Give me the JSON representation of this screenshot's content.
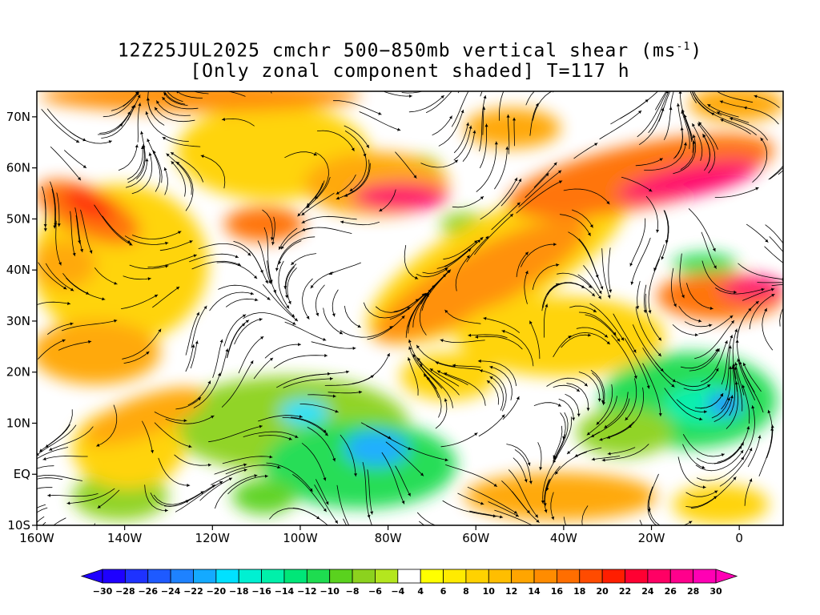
{
  "title": {
    "line1_prefix": "12Z25JUL2025 cmchr 500−850mb vertical shear (ms",
    "line1_sup": "-1",
    "line1_suffix": ")",
    "line2": "[Only zonal component shaded] T=117 h"
  },
  "map": {
    "lat_labels": [
      "70N",
      "60N",
      "50N",
      "40N",
      "30N",
      "20N",
      "10N",
      "EQ",
      "10S"
    ],
    "lon_labels": [
      "160W",
      "140W",
      "120W",
      "100W",
      "80W",
      "60W",
      "40W",
      "20W",
      "0"
    ],
    "lat_range": [
      -10,
      75
    ],
    "lon_range": [
      -160,
      10
    ]
  },
  "colorbar": {
    "labels": [
      "−30",
      "−28",
      "−26",
      "−24",
      "−22",
      "−20",
      "−18",
      "−16",
      "−14",
      "−12",
      "−10",
      "−8",
      "−6",
      "−4",
      "4",
      "6",
      "8",
      "10",
      "12",
      "14",
      "16",
      "18",
      "20",
      "22",
      "24",
      "26",
      "28",
      "30"
    ],
    "colors": [
      "#1e00ff",
      "#1e32ff",
      "#1e5aff",
      "#1e82ff",
      "#14aaff",
      "#00e1ff",
      "#00f0d2",
      "#00f0aa",
      "#00e678",
      "#1edc50",
      "#5ad21e",
      "#8cd21e",
      "#b4e61e",
      "#ffffff",
      "#ffff00",
      "#ffeb00",
      "#ffd200",
      "#ffbe00",
      "#ffa500",
      "#ff8c00",
      "#ff6e00",
      "#ff4b00",
      "#ff1e00",
      "#ff0032",
      "#ff0064",
      "#ff008c",
      "#ff00b4"
    ],
    "min_color": "#1e00ff",
    "max_color": "#ff00b4"
  }
}
